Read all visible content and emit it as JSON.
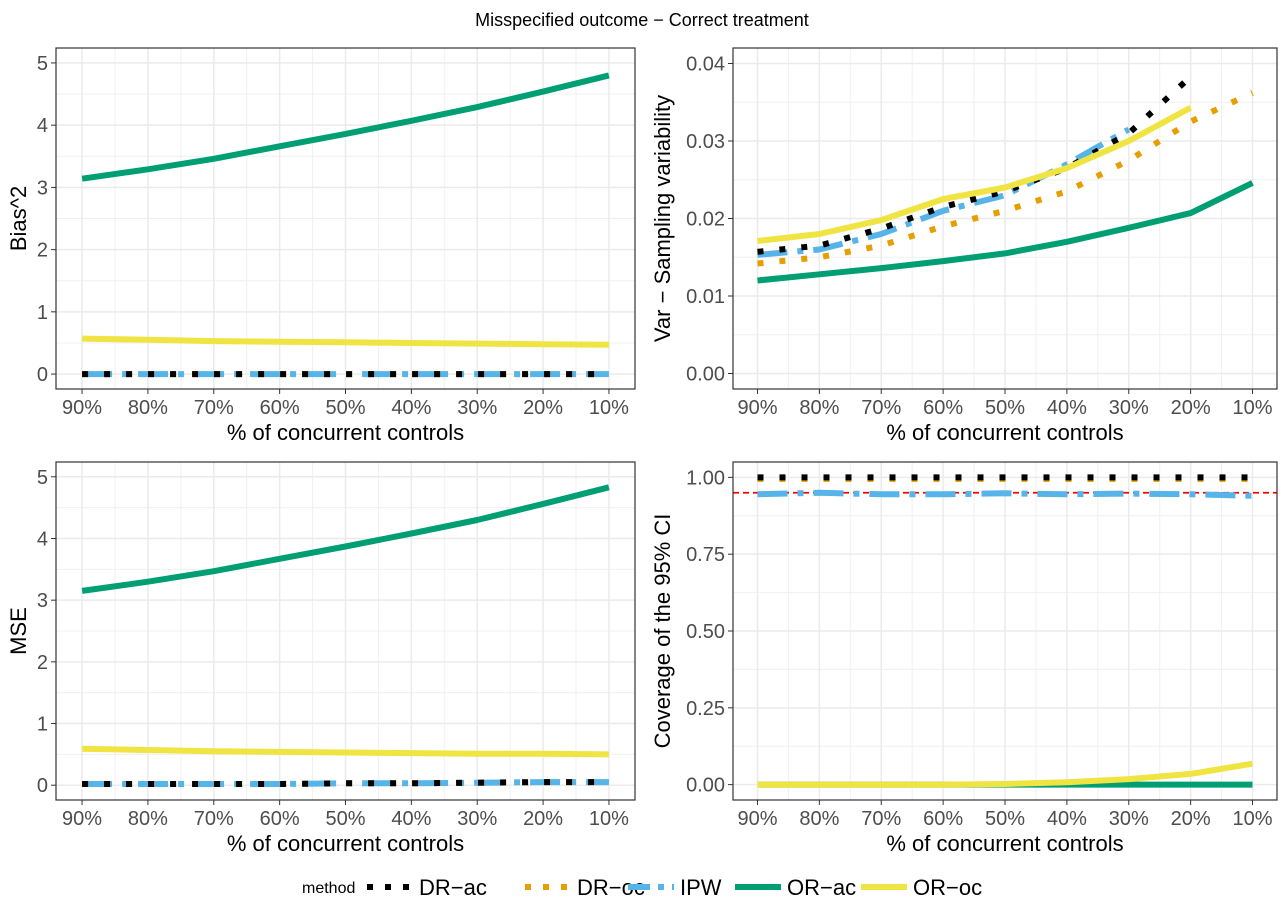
{
  "title": "Misspecified outcome − Correct treatment",
  "legend": {
    "title": "method",
    "entries": [
      {
        "label": "DR−ac",
        "color": "#000000",
        "dash": "dotted"
      },
      {
        "label": "DR−oc",
        "color": "#E69F00",
        "dash": "dotted"
      },
      {
        "label": "IPW",
        "color": "#56B4E9",
        "dash": "dashdot"
      },
      {
        "label": "OR−ac",
        "color": "#009E73",
        "dash": "solid"
      },
      {
        "label": "OR−oc",
        "color": "#F0E442",
        "dash": "solid"
      }
    ]
  },
  "chart_data": [
    {
      "type": "line",
      "ylabel": "Bias^2",
      "xlabel": "% of concurrent controls",
      "categories": [
        "90%",
        "80%",
        "70%",
        "60%",
        "50%",
        "40%",
        "30%",
        "20%",
        "10%"
      ],
      "ylim": [
        -0.24,
        5.24
      ],
      "yticks": [
        0,
        1,
        2,
        3,
        4,
        5
      ],
      "ytick_labels": [
        "0",
        "1",
        "2",
        "3",
        "4",
        "5"
      ],
      "series": [
        {
          "name": "DR−ac",
          "values": [
            0.0,
            0.0,
            0.0,
            0.0,
            0.0,
            0.0,
            0.0,
            0.0,
            0.0
          ]
        },
        {
          "name": "DR−oc",
          "values": [
            0.0,
            0.0,
            0.0,
            0.0,
            0.0,
            0.0,
            0.0,
            0.0,
            0.0
          ]
        },
        {
          "name": "IPW",
          "values": [
            0.0,
            0.0,
            0.0,
            0.0,
            0.0,
            0.0,
            0.0,
            0.0,
            0.0
          ]
        },
        {
          "name": "OR−ac",
          "values": [
            3.14,
            3.29,
            3.46,
            3.66,
            3.86,
            4.07,
            4.29,
            4.54,
            4.8
          ]
        },
        {
          "name": "OR−oc",
          "values": [
            0.57,
            0.55,
            0.53,
            0.52,
            0.51,
            0.5,
            0.49,
            0.48,
            0.47
          ]
        }
      ]
    },
    {
      "type": "line",
      "ylabel": "Var − Sampling variability",
      "xlabel": "% of concurrent controls",
      "categories": [
        "90%",
        "80%",
        "70%",
        "60%",
        "50%",
        "40%",
        "30%",
        "20%",
        "10%"
      ],
      "ylim": [
        -0.002,
        0.042
      ],
      "yticks": [
        0,
        0.01,
        0.02,
        0.03,
        0.04
      ],
      "ytick_labels": [
        "0.00",
        "0.01",
        "0.02",
        "0.03",
        "0.04"
      ],
      "series": [
        {
          "name": "DR−ac",
          "values": [
            0.0157,
            0.0165,
            0.0187,
            0.0215,
            0.0235,
            0.0265,
            0.031,
            0.0383,
            null
          ]
        },
        {
          "name": "DR−oc",
          "values": [
            0.0142,
            0.015,
            0.0165,
            0.019,
            0.021,
            0.0235,
            0.0275,
            0.0325,
            0.0362
          ]
        },
        {
          "name": "IPW",
          "values": [
            0.0153,
            0.016,
            0.018,
            0.021,
            0.023,
            0.027,
            0.0315,
            null,
            null
          ]
        },
        {
          "name": "OR−ac",
          "values": [
            0.012,
            0.0128,
            0.0136,
            0.0145,
            0.0155,
            0.017,
            0.0188,
            0.0207,
            0.0246
          ]
        },
        {
          "name": "OR−oc",
          "values": [
            0.0171,
            0.018,
            0.0198,
            0.0225,
            0.024,
            0.0265,
            0.03,
            0.0343,
            null
          ]
        }
      ]
    },
    {
      "type": "line",
      "ylabel": "MSE",
      "xlabel": "% of concurrent controls",
      "categories": [
        "90%",
        "80%",
        "70%",
        "60%",
        "50%",
        "40%",
        "30%",
        "20%",
        "10%"
      ],
      "ylim": [
        -0.24,
        5.24
      ],
      "yticks": [
        0,
        1,
        2,
        3,
        4,
        5
      ],
      "ytick_labels": [
        "0",
        "1",
        "2",
        "3",
        "4",
        "5"
      ],
      "series": [
        {
          "name": "DR−ac",
          "values": [
            0.02,
            0.02,
            0.02,
            0.02,
            0.03,
            0.03,
            0.04,
            0.05,
            0.05
          ]
        },
        {
          "name": "DR−oc",
          "values": [
            0.02,
            0.02,
            0.02,
            0.02,
            0.03,
            0.03,
            0.04,
            0.05,
            0.05
          ]
        },
        {
          "name": "IPW",
          "values": [
            0.02,
            0.02,
            0.02,
            0.02,
            0.03,
            0.03,
            0.04,
            0.05,
            0.05
          ]
        },
        {
          "name": "OR−ac",
          "values": [
            3.15,
            3.3,
            3.47,
            3.67,
            3.87,
            4.08,
            4.3,
            4.56,
            4.83
          ]
        },
        {
          "name": "OR−oc",
          "values": [
            0.59,
            0.57,
            0.55,
            0.54,
            0.53,
            0.52,
            0.51,
            0.51,
            0.5
          ]
        }
      ]
    },
    {
      "type": "line",
      "ylabel": "Coverage of the 95% CI",
      "xlabel": "% of concurrent controls",
      "categories": [
        "90%",
        "80%",
        "70%",
        "60%",
        "50%",
        "40%",
        "30%",
        "20%",
        "10%"
      ],
      "ylim": [
        -0.05,
        1.05
      ],
      "yticks": [
        0,
        0.25,
        0.5,
        0.75,
        1.0
      ],
      "ytick_labels": [
        "0.00",
        "0.25",
        "0.50",
        "0.75",
        "1.00"
      ],
      "reference_line": {
        "y": 0.95,
        "color": "#FF0000",
        "style": "dashed"
      },
      "series": [
        {
          "name": "DR−ac",
          "values": [
            1.0,
            1.0,
            1.0,
            1.0,
            1.0,
            1.0,
            1.0,
            1.0,
            1.0
          ]
        },
        {
          "name": "DR−oc",
          "values": [
            0.995,
            0.995,
            0.995,
            0.995,
            0.995,
            0.995,
            0.995,
            0.995,
            0.995
          ]
        },
        {
          "name": "IPW",
          "values": [
            0.945,
            0.95,
            0.945,
            0.945,
            0.948,
            0.945,
            0.947,
            0.945,
            0.94
          ]
        },
        {
          "name": "OR−ac",
          "values": [
            0.0,
            0.0,
            0.0,
            0.0,
            0.0,
            0.0,
            0.0,
            0.0,
            0.0
          ]
        },
        {
          "name": "OR−oc",
          "values": [
            0.0,
            0.0,
            0.0,
            0.0,
            0.002,
            0.008,
            0.018,
            0.035,
            0.068
          ]
        }
      ]
    }
  ]
}
